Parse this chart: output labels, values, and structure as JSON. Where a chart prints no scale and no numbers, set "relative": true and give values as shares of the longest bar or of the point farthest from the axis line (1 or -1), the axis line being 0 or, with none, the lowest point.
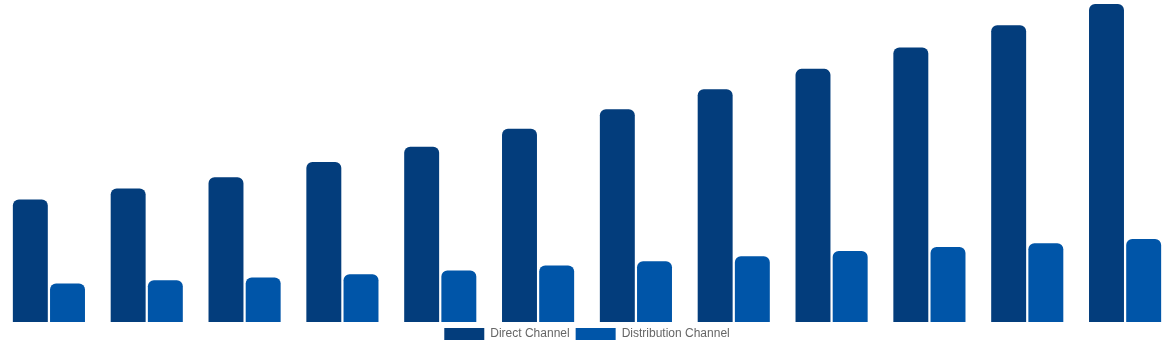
{
  "chart_data": {
    "type": "bar",
    "relative": true,
    "legend": "bottom",
    "categories": [
      null,
      null,
      null,
      null,
      null,
      null,
      null,
      null,
      null,
      null,
      null,
      null
    ],
    "series": [
      {
        "name": "Direct Channel",
        "color": "#033d7c",
        "values": [
          0.385,
          0.42,
          0.455,
          0.503,
          0.551,
          0.608,
          0.669,
          0.732,
          0.796,
          0.863,
          0.933,
          1
        ]
      },
      {
        "name": "Distribution Channel",
        "color": "#0055a8",
        "values": [
          0.121,
          0.131,
          0.14,
          0.15,
          0.162,
          0.178,
          0.191,
          0.207,
          0.223,
          0.236,
          0.248,
          0.261
        ]
      }
    ]
  }
}
